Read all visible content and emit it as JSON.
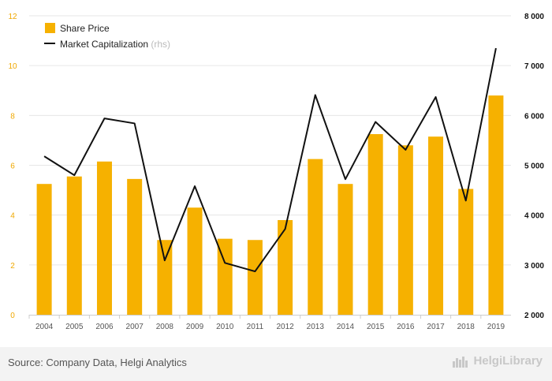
{
  "chart_data": {
    "type": "bar",
    "categories": [
      "2004",
      "2005",
      "2006",
      "2007",
      "2008",
      "2009",
      "2010",
      "2011",
      "2012",
      "2013",
      "2014",
      "2015",
      "2016",
      "2017",
      "2018",
      "2019"
    ],
    "series": [
      {
        "name": "Share Price",
        "type": "bar",
        "axis": "left",
        "values": [
          5.25,
          5.55,
          6.15,
          5.45,
          3.0,
          4.3,
          3.05,
          3.0,
          3.8,
          6.25,
          5.25,
          7.25,
          6.8,
          7.15,
          5.05,
          8.8
        ]
      },
      {
        "name": "Market Capitalization",
        "type": "line",
        "axis": "right",
        "values": [
          5180,
          4800,
          5940,
          5840,
          3090,
          4580,
          3040,
          2870,
          3720,
          6410,
          4720,
          5870,
          5310,
          6370,
          4290,
          7350
        ]
      }
    ],
    "left_axis": {
      "ticks": [
        "0",
        "2",
        "4",
        "6",
        "8",
        "10",
        "12"
      ],
      "ylim": [
        0,
        12
      ]
    },
    "right_axis": {
      "ticks": [
        "2 000",
        "3 000",
        "4 000",
        "5 000",
        "6 000",
        "7 000",
        "8 000"
      ],
      "ylim": [
        2000,
        8000
      ]
    },
    "legend": {
      "position": "top-left",
      "rhs_suffix": "(rhs)"
    },
    "grid": true,
    "colors": {
      "bar": "#f6b100",
      "line": "#111111",
      "grid": "#e6e6e6",
      "left_tick": "#f0a800",
      "right_tick": "#111111"
    }
  },
  "footer": {
    "source": "Source: Company Data, Helgi Analytics",
    "logo_text": "HelgiLibrary"
  }
}
